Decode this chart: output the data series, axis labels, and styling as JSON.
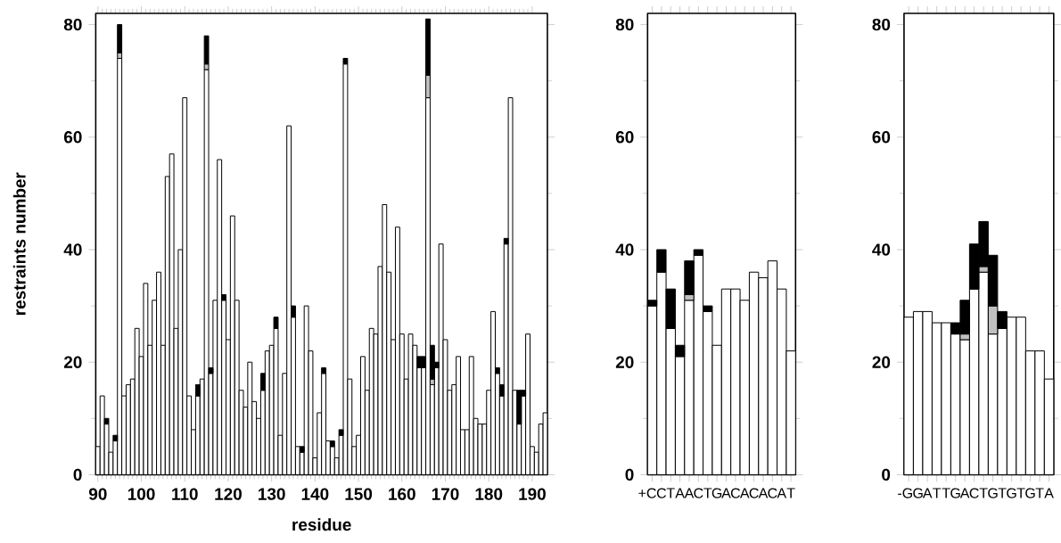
{
  "chart_data": [
    {
      "type": "bar",
      "stacked": true,
      "xlabel": "residue",
      "ylabel": "restraints number",
      "xlim": [
        89.5,
        193.5
      ],
      "ylim": [
        0,
        82
      ],
      "xticks": [
        90,
        100,
        110,
        120,
        130,
        140,
        150,
        160,
        170,
        180,
        190
      ],
      "yticks": [
        0,
        20,
        40,
        60,
        80
      ],
      "x": [
        90,
        91,
        92,
        93,
        94,
        95,
        96,
        97,
        98,
        99,
        100,
        101,
        102,
        103,
        104,
        105,
        106,
        107,
        108,
        109,
        110,
        111,
        112,
        113,
        114,
        115,
        116,
        117,
        118,
        119,
        120,
        121,
        122,
        123,
        124,
        125,
        126,
        127,
        128,
        129,
        130,
        131,
        132,
        133,
        134,
        135,
        136,
        137,
        138,
        139,
        140,
        141,
        142,
        143,
        144,
        145,
        146,
        147,
        148,
        149,
        150,
        151,
        152,
        153,
        154,
        155,
        156,
        157,
        158,
        159,
        160,
        161,
        162,
        163,
        164,
        165,
        166,
        167,
        168,
        169,
        170,
        171,
        172,
        173,
        174,
        175,
        176,
        177,
        178,
        179,
        180,
        181,
        182,
        183,
        184,
        185,
        186,
        187,
        188,
        189,
        190,
        191,
        192,
        193
      ],
      "series": [
        {
          "color": "#ffffff",
          "values": [
            5,
            14,
            9,
            4,
            6,
            74,
            14,
            16,
            17,
            26,
            21,
            34,
            23,
            31,
            36,
            23,
            53,
            57,
            26,
            40,
            67,
            14,
            8,
            14,
            17,
            72,
            18,
            31,
            56,
            31,
            24,
            46,
            31,
            15,
            12,
            20,
            13,
            10,
            15,
            22,
            23,
            26,
            7,
            18,
            62,
            28,
            5,
            4,
            30,
            22,
            3,
            11,
            18,
            6,
            5,
            3,
            7,
            73,
            17,
            5,
            7,
            21,
            15,
            26,
            25,
            37,
            48,
            36,
            24,
            44,
            25,
            17,
            25,
            23,
            19,
            19,
            67,
            16,
            19,
            41,
            24,
            15,
            16,
            21,
            8,
            8,
            21,
            10,
            9,
            9,
            15,
            29,
            18,
            14,
            41,
            67,
            15,
            9,
            14,
            25,
            5,
            4,
            9,
            11
          ]
        },
        {
          "color": "#c0c0c0",
          "values": [
            null,
            null,
            null,
            null,
            null,
            1,
            null,
            null,
            null,
            null,
            null,
            null,
            null,
            null,
            null,
            null,
            null,
            null,
            null,
            null,
            null,
            null,
            null,
            null,
            null,
            1,
            null,
            null,
            null,
            null,
            null,
            null,
            null,
            null,
            null,
            null,
            null,
            null,
            null,
            null,
            null,
            null,
            null,
            null,
            null,
            null,
            null,
            null,
            null,
            null,
            null,
            null,
            null,
            null,
            null,
            null,
            null,
            null,
            null,
            null,
            null,
            null,
            null,
            null,
            null,
            null,
            null,
            null,
            null,
            null,
            null,
            null,
            null,
            null,
            null,
            null,
            4,
            1,
            null,
            null,
            null,
            null,
            null,
            null,
            null,
            null,
            null,
            null,
            null,
            null,
            null,
            null,
            null,
            null,
            null,
            null,
            null,
            null,
            null,
            null,
            null,
            null,
            null,
            null
          ]
        },
        {
          "color": "#000000",
          "values": [
            null,
            null,
            1,
            null,
            1,
            5,
            null,
            null,
            null,
            null,
            null,
            null,
            null,
            null,
            null,
            null,
            null,
            null,
            null,
            null,
            null,
            null,
            null,
            2,
            null,
            5,
            1,
            null,
            null,
            1,
            null,
            null,
            null,
            null,
            null,
            null,
            null,
            null,
            3,
            null,
            null,
            2,
            null,
            null,
            null,
            2,
            null,
            1,
            null,
            null,
            null,
            null,
            1,
            null,
            1,
            null,
            1,
            1,
            null,
            null,
            null,
            null,
            null,
            null,
            null,
            null,
            null,
            null,
            null,
            null,
            null,
            null,
            null,
            null,
            2,
            2,
            10,
            6,
            1,
            null,
            null,
            null,
            null,
            null,
            null,
            null,
            null,
            null,
            null,
            null,
            null,
            null,
            1,
            2,
            1,
            null,
            null,
            6,
            1,
            null,
            null,
            null,
            null,
            null
          ]
        }
      ]
    },
    {
      "type": "bar",
      "stacked": true,
      "ylim": [
        0,
        82
      ],
      "yticks": [
        0,
        20,
        40,
        60,
        80
      ],
      "categories": [
        "+C",
        "C",
        "T",
        "A",
        "A",
        "C",
        "T",
        "G",
        "A",
        "C",
        "A",
        "C",
        "A",
        "C",
        "A",
        "T"
      ],
      "series": [
        {
          "color": "#ffffff",
          "values": [
            30,
            36,
            26,
            21,
            31,
            39,
            29,
            23,
            33,
            33,
            31,
            36,
            35,
            38,
            33,
            22
          ]
        },
        {
          "color": "#c0c0c0",
          "values": [
            null,
            null,
            null,
            null,
            1,
            null,
            null,
            null,
            null,
            null,
            null,
            null,
            null,
            null,
            null,
            null
          ]
        },
        {
          "color": "#000000",
          "values": [
            1,
            4,
            7,
            2,
            6,
            1,
            1,
            null,
            null,
            null,
            null,
            null,
            null,
            null,
            null,
            null
          ]
        }
      ]
    },
    {
      "type": "bar",
      "stacked": true,
      "ylim": [
        0,
        82
      ],
      "yticks": [
        0,
        20,
        40,
        60,
        80
      ],
      "categories": [
        "-G",
        "G",
        "A",
        "T",
        "T",
        "G",
        "A",
        "C",
        "T",
        "G",
        "T",
        "G",
        "T",
        "G",
        "T",
        "A"
      ],
      "series": [
        {
          "color": "#ffffff",
          "values": [
            28,
            29,
            29,
            27,
            27,
            25,
            24,
            33,
            36,
            25,
            26,
            28,
            28,
            22,
            22,
            17
          ]
        },
        {
          "color": "#c0c0c0",
          "values": [
            null,
            null,
            null,
            null,
            null,
            null,
            1,
            null,
            1,
            5,
            null,
            null,
            null,
            null,
            null,
            null
          ]
        },
        {
          "color": "#000000",
          "values": [
            null,
            null,
            null,
            null,
            null,
            2,
            6,
            8,
            8,
            9,
            3,
            null,
            null,
            null,
            null,
            null
          ]
        }
      ]
    }
  ]
}
